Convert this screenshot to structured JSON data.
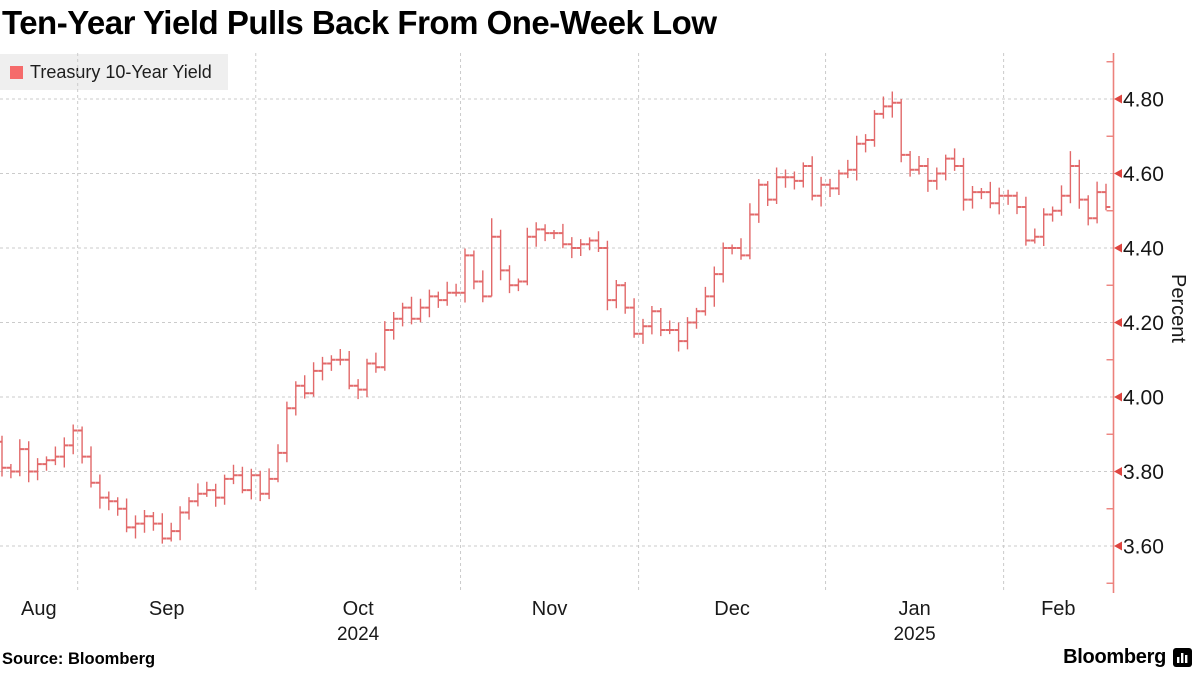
{
  "title": "Ten-Year Yield Pulls Back From One-Week Low",
  "legend": {
    "label": "Treasury 10-Year Yield",
    "swatch_color": "#f56b6b"
  },
  "source": "Source: Bloomberg",
  "brand": {
    "wordmark": "Bloomberg"
  },
  "colors": {
    "bar": "#e2696a",
    "axis_line": "#ec817c",
    "axis_arrow": "#de4540",
    "grid": "#cbcbcb",
    "tick_text": "#161616",
    "month_text": "#1a1a1a"
  },
  "chart_data": {
    "type": "ohlc-bar",
    "title": "Ten-Year Yield Pulls Back From One-Week Low",
    "ylabel": "Percent",
    "unit": "Percent",
    "legend_position": "top-left",
    "grid": "dashed",
    "y_tick_labels": [
      "3.60",
      "3.80",
      "4.00",
      "4.20",
      "4.40",
      "4.60",
      "4.80"
    ],
    "y_ticks": [
      3.6,
      3.8,
      4.0,
      4.2,
      4.4,
      4.6,
      4.8
    ],
    "y_minor_ticks": [
      3.5,
      3.7,
      3.9,
      4.1,
      4.3,
      4.5,
      4.7,
      4.9
    ],
    "ylim": [
      3.48,
      4.92
    ],
    "months": [
      {
        "label": "Aug",
        "bars": 9
      },
      {
        "label": "Sep",
        "bars": 20
      },
      {
        "label": "Oct",
        "bars": 23
      },
      {
        "label": "Nov",
        "bars": 20
      },
      {
        "label": "Dec",
        "bars": 21
      },
      {
        "label": "Jan",
        "bars": 20
      },
      {
        "label": "Feb",
        "bars": 12
      }
    ],
    "year_labels": [
      {
        "label": "2024",
        "month_index": 2
      },
      {
        "label": "2025",
        "month_index": 5
      }
    ],
    "series": [
      {
        "name": "Treasury 10-Year Yield",
        "first_open": 3.88,
        "closes": [
          3.81,
          3.8,
          3.86,
          3.8,
          3.82,
          3.83,
          3.84,
          3.87,
          3.91,
          3.84,
          3.77,
          3.73,
          3.72,
          3.7,
          3.65,
          3.66,
          3.68,
          3.66,
          3.62,
          3.64,
          3.69,
          3.72,
          3.74,
          3.75,
          3.73,
          3.78,
          3.79,
          3.75,
          3.79,
          3.74,
          3.78,
          3.85,
          3.97,
          4.03,
          4.01,
          4.07,
          4.09,
          4.1,
          4.1,
          4.03,
          4.02,
          4.09,
          4.08,
          4.18,
          4.21,
          4.24,
          4.21,
          4.24,
          4.27,
          4.26,
          4.28,
          4.28,
          4.38,
          4.31,
          4.27,
          4.43,
          4.34,
          4.3,
          4.31,
          4.43,
          4.45,
          4.44,
          4.44,
          4.41,
          4.4,
          4.41,
          4.42,
          4.4,
          4.26,
          4.3,
          4.24,
          4.17,
          4.19,
          4.23,
          4.18,
          4.18,
          4.15,
          4.2,
          4.23,
          4.27,
          4.33,
          4.4,
          4.4,
          4.38,
          4.49,
          4.57,
          4.53,
          4.59,
          4.59,
          4.58,
          4.62,
          4.54,
          4.57,
          4.56,
          4.6,
          4.61,
          4.68,
          4.69,
          4.76,
          4.78,
          4.79,
          4.65,
          4.61,
          4.62,
          4.58,
          4.6,
          4.64,
          4.62,
          4.53,
          4.55,
          4.55,
          4.52,
          4.54,
          4.54,
          4.51,
          4.42,
          4.43,
          4.49,
          4.5,
          4.54,
          4.62,
          4.53,
          4.48,
          4.55,
          4.51
        ],
        "range_overrides": {
          "55": [
            4.48,
            4.27
          ],
          "84": [
            4.52,
            4.37
          ],
          "100": [
            4.82,
            4.75
          ],
          "101": [
            4.8,
            4.63
          ],
          "120": [
            4.66,
            4.52
          ]
        }
      }
    ]
  }
}
